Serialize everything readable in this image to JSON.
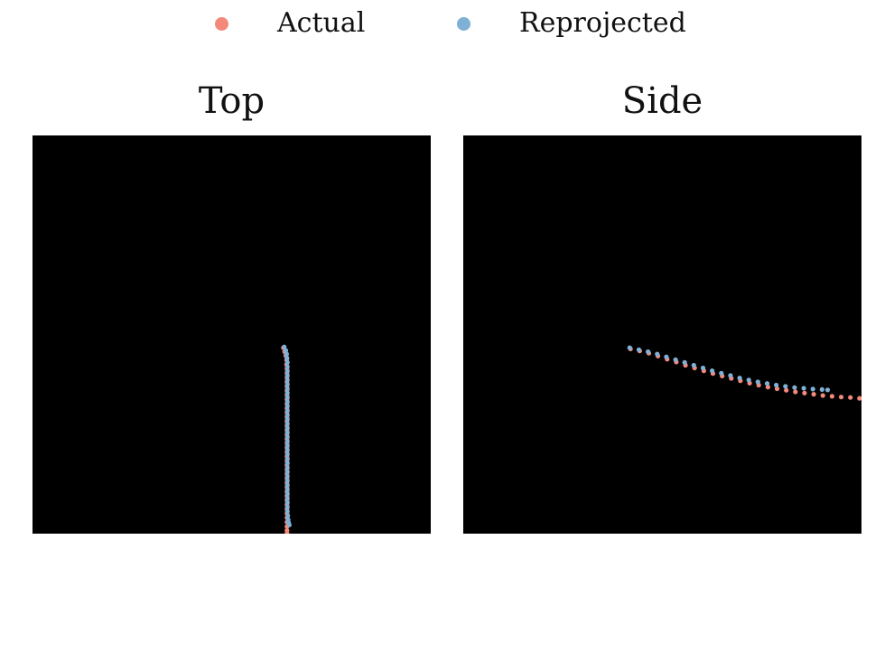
{
  "chart_data": [
    {
      "type": "scatter",
      "title": "Top",
      "background": "#000000",
      "xlim": [
        0,
        1
      ],
      "ylim": [
        0,
        1
      ],
      "series": [
        {
          "name": "Actual",
          "color": "#f4897b",
          "points": [
            [
              0.63,
              0.467
            ],
            [
              0.633,
              0.457
            ],
            [
              0.636,
              0.447
            ],
            [
              0.638,
              0.436
            ],
            [
              0.638,
              0.425
            ],
            [
              0.639,
              0.414
            ],
            [
              0.639,
              0.403
            ],
            [
              0.639,
              0.392
            ],
            [
              0.639,
              0.381
            ],
            [
              0.639,
              0.37
            ],
            [
              0.639,
              0.359
            ],
            [
              0.639,
              0.348
            ],
            [
              0.639,
              0.337
            ],
            [
              0.639,
              0.326
            ],
            [
              0.639,
              0.315
            ],
            [
              0.639,
              0.304
            ],
            [
              0.639,
              0.293
            ],
            [
              0.639,
              0.282
            ],
            [
              0.639,
              0.271
            ],
            [
              0.639,
              0.26
            ],
            [
              0.639,
              0.249
            ],
            [
              0.639,
              0.238
            ],
            [
              0.639,
              0.227
            ],
            [
              0.639,
              0.216
            ],
            [
              0.639,
              0.205
            ],
            [
              0.639,
              0.194
            ],
            [
              0.639,
              0.183
            ],
            [
              0.639,
              0.172
            ],
            [
              0.639,
              0.161
            ],
            [
              0.639,
              0.15
            ],
            [
              0.639,
              0.139
            ],
            [
              0.639,
              0.128
            ],
            [
              0.639,
              0.117
            ],
            [
              0.639,
              0.106
            ],
            [
              0.639,
              0.095
            ],
            [
              0.639,
              0.084
            ],
            [
              0.639,
              0.073
            ],
            [
              0.639,
              0.062
            ],
            [
              0.639,
              0.051
            ],
            [
              0.639,
              0.04
            ],
            [
              0.639,
              0.029
            ],
            [
              0.639,
              0.018
            ],
            [
              0.639,
              0.008
            ],
            [
              0.639,
              0.0
            ]
          ]
        },
        {
          "name": "Reprojected",
          "color": "#7fb0d6",
          "points": [
            [
              0.632,
              0.469
            ],
            [
              0.636,
              0.46
            ],
            [
              0.638,
              0.451
            ],
            [
              0.639,
              0.441
            ],
            [
              0.64,
              0.43
            ],
            [
              0.64,
              0.419
            ],
            [
              0.64,
              0.408
            ],
            [
              0.64,
              0.397
            ],
            [
              0.64,
              0.386
            ],
            [
              0.64,
              0.375
            ],
            [
              0.64,
              0.364
            ],
            [
              0.64,
              0.353
            ],
            [
              0.64,
              0.342
            ],
            [
              0.64,
              0.331
            ],
            [
              0.64,
              0.32
            ],
            [
              0.64,
              0.309
            ],
            [
              0.64,
              0.298
            ],
            [
              0.64,
              0.287
            ],
            [
              0.64,
              0.276
            ],
            [
              0.64,
              0.265
            ],
            [
              0.64,
              0.254
            ],
            [
              0.64,
              0.243
            ],
            [
              0.64,
              0.232
            ],
            [
              0.64,
              0.221
            ],
            [
              0.64,
              0.21
            ],
            [
              0.64,
              0.199
            ],
            [
              0.64,
              0.188
            ],
            [
              0.64,
              0.177
            ],
            [
              0.64,
              0.166
            ],
            [
              0.64,
              0.155
            ],
            [
              0.64,
              0.144
            ],
            [
              0.64,
              0.133
            ],
            [
              0.64,
              0.122
            ],
            [
              0.64,
              0.111
            ],
            [
              0.64,
              0.1
            ],
            [
              0.64,
              0.089
            ],
            [
              0.64,
              0.078
            ],
            [
              0.64,
              0.067
            ],
            [
              0.64,
              0.056
            ],
            [
              0.641,
              0.045
            ],
            [
              0.642,
              0.035
            ],
            [
              0.643,
              0.028
            ],
            [
              0.645,
              0.022
            ]
          ]
        }
      ]
    },
    {
      "type": "scatter",
      "title": "Side",
      "background": "#000000",
      "xlim": [
        0,
        1
      ],
      "ylim": [
        0,
        1
      ],
      "series": [
        {
          "name": "Actual",
          "color": "#f4897b",
          "points": [
            [
              0.42,
              0.464
            ],
            [
              0.443,
              0.459
            ],
            [
              0.466,
              0.453
            ],
            [
              0.489,
              0.446
            ],
            [
              0.512,
              0.438
            ],
            [
              0.535,
              0.431
            ],
            [
              0.558,
              0.423
            ],
            [
              0.581,
              0.416
            ],
            [
              0.604,
              0.409
            ],
            [
              0.627,
              0.402
            ],
            [
              0.65,
              0.396
            ],
            [
              0.673,
              0.39
            ],
            [
              0.696,
              0.384
            ],
            [
              0.719,
              0.378
            ],
            [
              0.742,
              0.373
            ],
            [
              0.765,
              0.368
            ],
            [
              0.788,
              0.364
            ],
            [
              0.811,
              0.36
            ],
            [
              0.834,
              0.356
            ],
            [
              0.857,
              0.353
            ],
            [
              0.88,
              0.35
            ],
            [
              0.903,
              0.347
            ],
            [
              0.926,
              0.345
            ],
            [
              0.949,
              0.343
            ],
            [
              0.972,
              0.342
            ],
            [
              0.995,
              0.34
            ]
          ]
        },
        {
          "name": "Reprojected",
          "color": "#7fb0d6",
          "points": [
            [
              0.418,
              0.467
            ],
            [
              0.441,
              0.462
            ],
            [
              0.464,
              0.457
            ],
            [
              0.487,
              0.451
            ],
            [
              0.51,
              0.444
            ],
            [
              0.533,
              0.437
            ],
            [
              0.556,
              0.43
            ],
            [
              0.579,
              0.423
            ],
            [
              0.602,
              0.416
            ],
            [
              0.625,
              0.409
            ],
            [
              0.648,
              0.403
            ],
            [
              0.671,
              0.397
            ],
            [
              0.694,
              0.391
            ],
            [
              0.717,
              0.386
            ],
            [
              0.74,
              0.381
            ],
            [
              0.763,
              0.377
            ],
            [
              0.786,
              0.373
            ],
            [
              0.809,
              0.37
            ],
            [
              0.832,
              0.367
            ],
            [
              0.855,
              0.365
            ],
            [
              0.878,
              0.363
            ],
            [
              0.901,
              0.362
            ],
            [
              0.915,
              0.361
            ]
          ]
        }
      ]
    }
  ],
  "legend": {
    "items": [
      {
        "label": "Actual",
        "color": "#f4897b"
      },
      {
        "label": "Reprojected",
        "color": "#7fb0d6"
      }
    ]
  }
}
